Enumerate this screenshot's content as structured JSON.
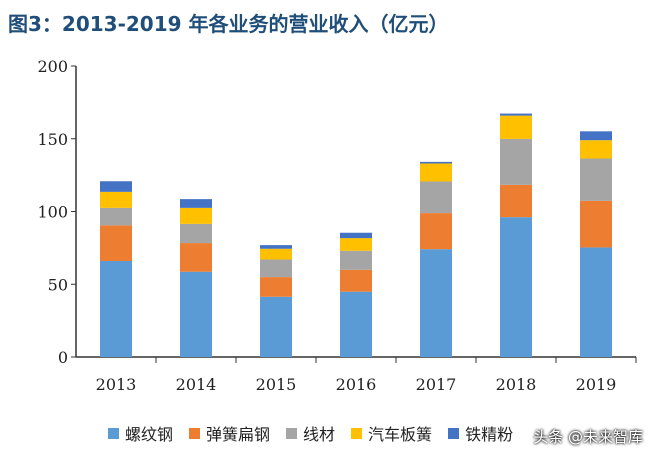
{
  "title": "图3：2013-2019 年各业务的营业收入（亿元）",
  "watermark": "头条 @未来智库",
  "chart_data": {
    "type": "bar",
    "stacked": true,
    "title": "图3：2013-2019 年各业务的营业收入（亿元）",
    "xlabel": "",
    "ylabel": "",
    "ylim": [
      0,
      200
    ],
    "yticks": [
      0,
      50,
      100,
      150,
      200
    ],
    "categories": [
      "2013",
      "2014",
      "2015",
      "2016",
      "2017",
      "2018",
      "2019"
    ],
    "series": [
      {
        "name": "螺纹钢",
        "color": "#5b9bd5",
        "values": [
          66,
          58.6,
          41.4,
          44.9,
          74.1,
          96.1,
          75.3
        ]
      },
      {
        "name": "弹簧扁钢",
        "color": "#ed7d31",
        "values": [
          24.5,
          19.7,
          13.5,
          15,
          24.8,
          22.2,
          32
        ]
      },
      {
        "name": "线材",
        "color": "#a5a5a5",
        "values": [
          12,
          13.2,
          12.1,
          13.1,
          21.7,
          31.6,
          29.1
        ]
      },
      {
        "name": "汽车板簧",
        "color": "#ffc000",
        "values": [
          11,
          11,
          7.4,
          8.7,
          12.4,
          16,
          12.6
        ]
      },
      {
        "name": "铁精粉",
        "color": "#4472c4",
        "values": [
          7.3,
          6,
          2.5,
          3.7,
          1.1,
          1.4,
          6.1
        ]
      }
    ],
    "legend": "bottom"
  }
}
